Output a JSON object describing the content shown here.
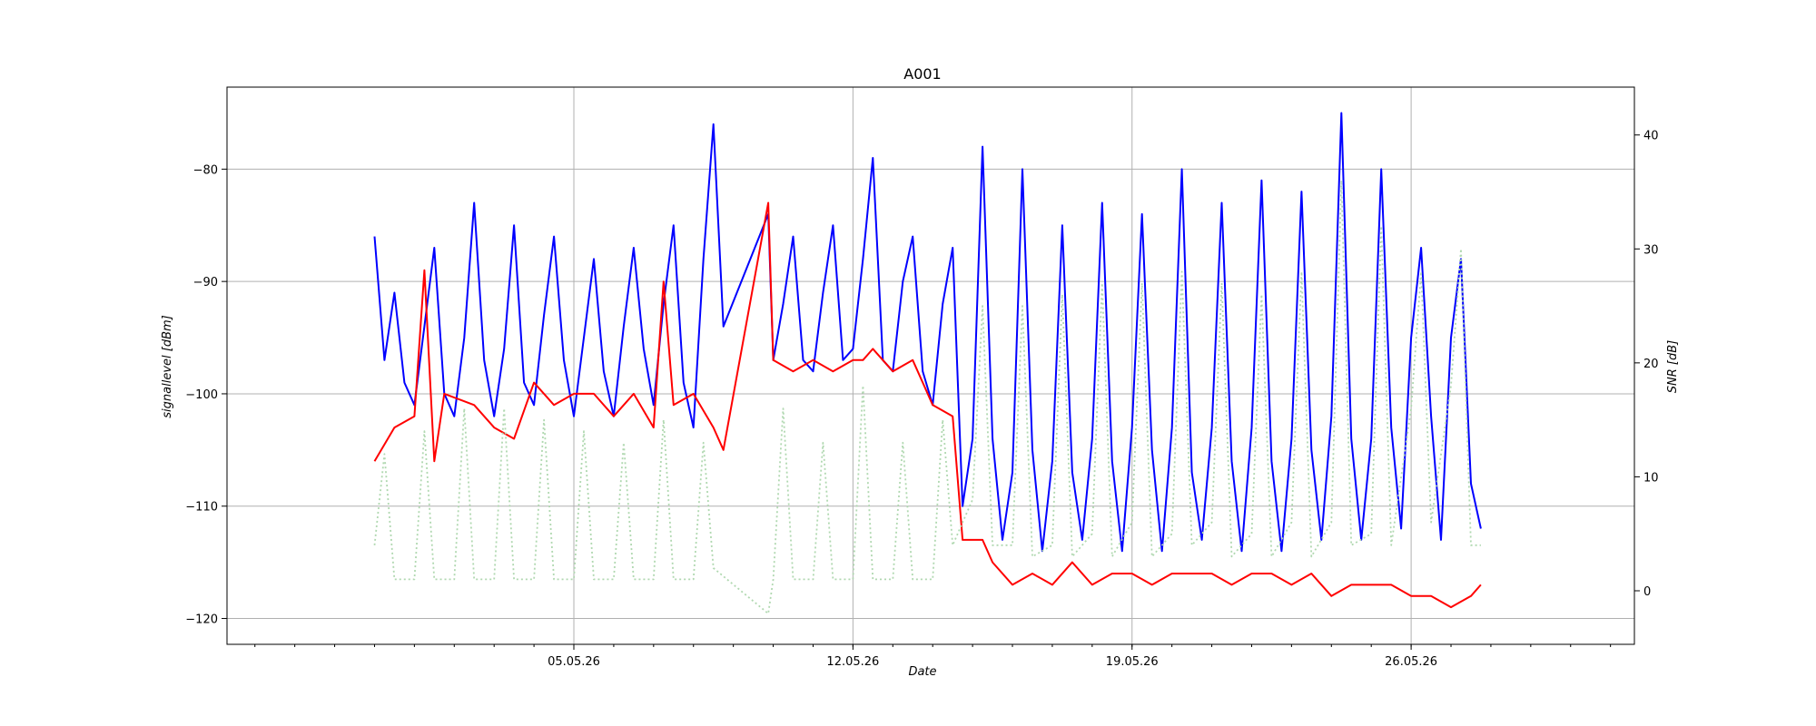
{
  "chart_data": {
    "type": "line",
    "title": "A001",
    "xlabel": "Date",
    "ylabel_left": "signallevel [dBm]",
    "ylabel_right": "SNR [dB]",
    "x_start": "2026-04-30",
    "x_end": "2026-05-27",
    "x_ticks": [
      "05.05.26",
      "12.05.26",
      "19.05.26",
      "26.05.26"
    ],
    "y_left_ticks": [
      -80,
      -90,
      -100,
      -110,
      -120
    ],
    "y_left_lim": [
      -122.3,
      -72.7
    ],
    "y_right_ticks": [
      40,
      30,
      20,
      10,
      0
    ],
    "y_right_lim": [
      -4.7,
      44.2
    ],
    "grid": true,
    "series": [
      {
        "axis": "left",
        "color": "#0000ff",
        "style": "solid",
        "data": [
          [
            "2026-04-30T00:00",
            -86
          ],
          [
            "2026-04-30T06:00",
            -97
          ],
          [
            "2026-04-30T12:00",
            -91
          ],
          [
            "2026-04-30T18:00",
            -99
          ],
          [
            "2026-05-01T00:00",
            -101
          ],
          [
            "2026-05-01T06:00",
            -94
          ],
          [
            "2026-05-01T12:00",
            -87
          ],
          [
            "2026-05-01T18:00",
            -100
          ],
          [
            "2026-05-02T00:00",
            -102
          ],
          [
            "2026-05-02T06:00",
            -95
          ],
          [
            "2026-05-02T12:00",
            -83
          ],
          [
            "2026-05-02T18:00",
            -97
          ],
          [
            "2026-05-03T00:00",
            -102
          ],
          [
            "2026-05-03T06:00",
            -96
          ],
          [
            "2026-05-03T12:00",
            -85
          ],
          [
            "2026-05-03T18:00",
            -99
          ],
          [
            "2026-05-04T00:00",
            -101
          ],
          [
            "2026-05-04T06:00",
            -93
          ],
          [
            "2026-05-04T12:00",
            -86
          ],
          [
            "2026-05-04T18:00",
            -97
          ],
          [
            "2026-05-05T00:00",
            -102
          ],
          [
            "2026-05-05T06:00",
            -95
          ],
          [
            "2026-05-05T12:00",
            -88
          ],
          [
            "2026-05-05T18:00",
            -98
          ],
          [
            "2026-05-06T00:00",
            -102
          ],
          [
            "2026-05-06T06:00",
            -94
          ],
          [
            "2026-05-06T12:00",
            -87
          ],
          [
            "2026-05-06T18:00",
            -96
          ],
          [
            "2026-05-07T00:00",
            -101
          ],
          [
            "2026-05-07T06:00",
            -92
          ],
          [
            "2026-05-07T12:00",
            -85
          ],
          [
            "2026-05-07T18:00",
            -99
          ],
          [
            "2026-05-08T00:00",
            -103
          ],
          [
            "2026-05-08T06:00",
            -88
          ],
          [
            "2026-05-08T12:00",
            -76
          ],
          [
            "2026-05-08T18:00",
            -94
          ],
          [
            "2026-05-09T21:00",
            -84
          ],
          [
            "2026-05-10T00:00",
            -97
          ],
          [
            "2026-05-10T06:00",
            -92
          ],
          [
            "2026-05-10T12:00",
            -86
          ],
          [
            "2026-05-10T18:00",
            -97
          ],
          [
            "2026-05-11T00:00",
            -98
          ],
          [
            "2026-05-11T06:00",
            -91
          ],
          [
            "2026-05-11T12:00",
            -85
          ],
          [
            "2026-05-11T18:00",
            -97
          ],
          [
            "2026-05-12T00:00",
            -96
          ],
          [
            "2026-05-12T06:00",
            -88
          ],
          [
            "2026-05-12T12:00",
            -79
          ],
          [
            "2026-05-12T18:00",
            -97
          ],
          [
            "2026-05-13T00:00",
            -98
          ],
          [
            "2026-05-13T06:00",
            -90
          ],
          [
            "2026-05-13T12:00",
            -86
          ],
          [
            "2026-05-13T18:00",
            -98
          ],
          [
            "2026-05-14T00:00",
            -101
          ],
          [
            "2026-05-14T06:00",
            -92
          ],
          [
            "2026-05-14T12:00",
            -87
          ],
          [
            "2026-05-14T18:00",
            -110
          ],
          [
            "2026-05-15T00:00",
            -104
          ],
          [
            "2026-05-15T06:00",
            -78
          ],
          [
            "2026-05-15T12:00",
            -104
          ],
          [
            "2026-05-15T18:00",
            -113
          ],
          [
            "2026-05-16T00:00",
            -107
          ],
          [
            "2026-05-16T06:00",
            -80
          ],
          [
            "2026-05-16T12:00",
            -105
          ],
          [
            "2026-05-16T18:00",
            -114
          ],
          [
            "2026-05-17T00:00",
            -106
          ],
          [
            "2026-05-17T06:00",
            -85
          ],
          [
            "2026-05-17T12:00",
            -107
          ],
          [
            "2026-05-17T18:00",
            -113
          ],
          [
            "2026-05-18T00:00",
            -104
          ],
          [
            "2026-05-18T06:00",
            -83
          ],
          [
            "2026-05-18T12:00",
            -106
          ],
          [
            "2026-05-18T18:00",
            -114
          ],
          [
            "2026-05-19T00:00",
            -103
          ],
          [
            "2026-05-19T06:00",
            -84
          ],
          [
            "2026-05-19T12:00",
            -105
          ],
          [
            "2026-05-19T18:00",
            -114
          ],
          [
            "2026-05-20T00:00",
            -103
          ],
          [
            "2026-05-20T06:00",
            -80
          ],
          [
            "2026-05-20T12:00",
            -107
          ],
          [
            "2026-05-20T18:00",
            -113
          ],
          [
            "2026-05-21T00:00",
            -103
          ],
          [
            "2026-05-21T06:00",
            -83
          ],
          [
            "2026-05-21T12:00",
            -106
          ],
          [
            "2026-05-21T18:00",
            -114
          ],
          [
            "2026-05-22T00:00",
            -103
          ],
          [
            "2026-05-22T06:00",
            -81
          ],
          [
            "2026-05-22T12:00",
            -106
          ],
          [
            "2026-05-22T18:00",
            -114
          ],
          [
            "2026-05-23T00:00",
            -104
          ],
          [
            "2026-05-23T06:00",
            -82
          ],
          [
            "2026-05-23T12:00",
            -105
          ],
          [
            "2026-05-23T18:00",
            -113
          ],
          [
            "2026-05-24T00:00",
            -102
          ],
          [
            "2026-05-24T06:00",
            -75
          ],
          [
            "2026-05-24T12:00",
            -104
          ],
          [
            "2026-05-24T18:00",
            -113
          ],
          [
            "2026-05-25T00:00",
            -104
          ],
          [
            "2026-05-25T06:00",
            -80
          ],
          [
            "2026-05-25T12:00",
            -103
          ],
          [
            "2026-05-25T18:00",
            -112
          ],
          [
            "2026-05-26T00:00",
            -95
          ],
          [
            "2026-05-26T06:00",
            -87
          ],
          [
            "2026-05-26T12:00",
            -102
          ],
          [
            "2026-05-26T18:00",
            -113
          ],
          [
            "2026-05-27T00:00",
            -95
          ],
          [
            "2026-05-27T06:00",
            -88
          ],
          [
            "2026-05-27T12:00",
            -108
          ],
          [
            "2026-05-27T18:00",
            -112
          ]
        ]
      },
      {
        "axis": "left",
        "color": "#ff0000",
        "style": "solid",
        "data": [
          [
            "2026-04-30T00:00",
            -106
          ],
          [
            "2026-04-30T12:00",
            -103
          ],
          [
            "2026-05-01T00:00",
            -102
          ],
          [
            "2026-05-01T06:00",
            -89
          ],
          [
            "2026-05-01T12:00",
            -106
          ],
          [
            "2026-05-01T18:00",
            -100
          ],
          [
            "2026-05-02T12:00",
            -101
          ],
          [
            "2026-05-03T00:00",
            -103
          ],
          [
            "2026-05-03T12:00",
            -104
          ],
          [
            "2026-05-04T00:00",
            -99
          ],
          [
            "2026-05-04T12:00",
            -101
          ],
          [
            "2026-05-05T00:00",
            -100
          ],
          [
            "2026-05-05T12:00",
            -100
          ],
          [
            "2026-05-06T00:00",
            -102
          ],
          [
            "2026-05-06T12:00",
            -100
          ],
          [
            "2026-05-07T00:00",
            -103
          ],
          [
            "2026-05-07T06:00",
            -90
          ],
          [
            "2026-05-07T12:00",
            -101
          ],
          [
            "2026-05-08T00:00",
            -100
          ],
          [
            "2026-05-08T12:00",
            -103
          ],
          [
            "2026-05-08T18:00",
            -105
          ],
          [
            "2026-05-09T21:00",
            -83
          ],
          [
            "2026-05-10T00:00",
            -97
          ],
          [
            "2026-05-10T12:00",
            -98
          ],
          [
            "2026-05-11T00:00",
            -97
          ],
          [
            "2026-05-11T12:00",
            -98
          ],
          [
            "2026-05-12T00:00",
            -97
          ],
          [
            "2026-05-12T06:00",
            -97
          ],
          [
            "2026-05-12T12:00",
            -96
          ],
          [
            "2026-05-13T00:00",
            -98
          ],
          [
            "2026-05-13T12:00",
            -97
          ],
          [
            "2026-05-14T00:00",
            -101
          ],
          [
            "2026-05-14T12:00",
            -102
          ],
          [
            "2026-05-14T18:00",
            -113
          ],
          [
            "2026-05-15T06:00",
            -113
          ],
          [
            "2026-05-15T12:00",
            -115
          ],
          [
            "2026-05-16T00:00",
            -117
          ],
          [
            "2026-05-16T12:00",
            -116
          ],
          [
            "2026-05-17T00:00",
            -117
          ],
          [
            "2026-05-17T12:00",
            -115
          ],
          [
            "2026-05-18T00:00",
            -117
          ],
          [
            "2026-05-18T12:00",
            -116
          ],
          [
            "2026-05-19T00:00",
            -116
          ],
          [
            "2026-05-19T12:00",
            -117
          ],
          [
            "2026-05-20T00:00",
            -116
          ],
          [
            "2026-05-20T12:00",
            -116
          ],
          [
            "2026-05-21T00:00",
            -116
          ],
          [
            "2026-05-21T12:00",
            -117
          ],
          [
            "2026-05-22T00:00",
            -116
          ],
          [
            "2026-05-22T12:00",
            -116
          ],
          [
            "2026-05-23T00:00",
            -117
          ],
          [
            "2026-05-23T12:00",
            -116
          ],
          [
            "2026-05-24T00:00",
            -118
          ],
          [
            "2026-05-24T12:00",
            -117
          ],
          [
            "2026-05-25T00:00",
            -117
          ],
          [
            "2026-05-25T12:00",
            -117
          ],
          [
            "2026-05-26T00:00",
            -118
          ],
          [
            "2026-05-26T12:00",
            -118
          ],
          [
            "2026-05-27T00:00",
            -119
          ],
          [
            "2026-05-27T12:00",
            -118
          ],
          [
            "2026-05-27T18:00",
            -117
          ]
        ]
      },
      {
        "axis": "right",
        "color": "#b0d8b0",
        "style": "dotted",
        "data": [
          [
            "2026-04-30T00:00",
            4
          ],
          [
            "2026-04-30T06:00",
            12
          ],
          [
            "2026-04-30T12:00",
            1
          ],
          [
            "2026-05-01T00:00",
            1
          ],
          [
            "2026-05-01T06:00",
            14
          ],
          [
            "2026-05-01T12:00",
            1
          ],
          [
            "2026-05-02T00:00",
            1
          ],
          [
            "2026-05-02T06:00",
            16
          ],
          [
            "2026-05-02T12:00",
            1
          ],
          [
            "2026-05-03T00:00",
            1
          ],
          [
            "2026-05-03T06:00",
            16
          ],
          [
            "2026-05-03T12:00",
            1
          ],
          [
            "2026-05-04T00:00",
            1
          ],
          [
            "2026-05-04T06:00",
            15
          ],
          [
            "2026-05-04T12:00",
            1
          ],
          [
            "2026-05-05T00:00",
            1
          ],
          [
            "2026-05-05T06:00",
            14
          ],
          [
            "2026-05-05T12:00",
            1
          ],
          [
            "2026-05-06T00:00",
            1
          ],
          [
            "2026-05-06T06:00",
            13
          ],
          [
            "2026-05-06T12:00",
            1
          ],
          [
            "2026-05-07T00:00",
            1
          ],
          [
            "2026-05-07T06:00",
            15
          ],
          [
            "2026-05-07T12:00",
            1
          ],
          [
            "2026-05-08T00:00",
            1
          ],
          [
            "2026-05-08T06:00",
            13
          ],
          [
            "2026-05-08T12:00",
            2
          ],
          [
            "2026-05-09T21:00",
            -2
          ],
          [
            "2026-05-10T00:00",
            1
          ],
          [
            "2026-05-10T06:00",
            16
          ],
          [
            "2026-05-10T12:00",
            1
          ],
          [
            "2026-05-11T00:00",
            1
          ],
          [
            "2026-05-11T06:00",
            13
          ],
          [
            "2026-05-11T12:00",
            1
          ],
          [
            "2026-05-12T00:00",
            1
          ],
          [
            "2026-05-12T06:00",
            18
          ],
          [
            "2026-05-12T12:00",
            1
          ],
          [
            "2026-05-13T00:00",
            1
          ],
          [
            "2026-05-13T06:00",
            13
          ],
          [
            "2026-05-13T12:00",
            1
          ],
          [
            "2026-05-14T00:00",
            1
          ],
          [
            "2026-05-14T06:00",
            15
          ],
          [
            "2026-05-14T12:00",
            4
          ],
          [
            "2026-05-15T00:00",
            8
          ],
          [
            "2026-05-15T06:00",
            25
          ],
          [
            "2026-05-15T12:00",
            4
          ],
          [
            "2026-05-16T00:00",
            4
          ],
          [
            "2026-05-16T06:00",
            25
          ],
          [
            "2026-05-16T12:00",
            3
          ],
          [
            "2026-05-17T00:00",
            4
          ],
          [
            "2026-05-17T06:00",
            26
          ],
          [
            "2026-05-17T12:00",
            3
          ],
          [
            "2026-05-18T00:00",
            5
          ],
          [
            "2026-05-18T06:00",
            27
          ],
          [
            "2026-05-18T12:00",
            3
          ],
          [
            "2026-05-19T00:00",
            6
          ],
          [
            "2026-05-19T06:00",
            27
          ],
          [
            "2026-05-19T12:00",
            3
          ],
          [
            "2026-05-20T00:00",
            5
          ],
          [
            "2026-05-20T06:00",
            28
          ],
          [
            "2026-05-20T12:00",
            4
          ],
          [
            "2026-05-21T00:00",
            6
          ],
          [
            "2026-05-21T06:00",
            27
          ],
          [
            "2026-05-21T12:00",
            3
          ],
          [
            "2026-05-22T00:00",
            5
          ],
          [
            "2026-05-22T06:00",
            26
          ],
          [
            "2026-05-22T12:00",
            3
          ],
          [
            "2026-05-23T00:00",
            6
          ],
          [
            "2026-05-23T06:00",
            28
          ],
          [
            "2026-05-23T12:00",
            3
          ],
          [
            "2026-05-24T00:00",
            6
          ],
          [
            "2026-05-24T06:00",
            36
          ],
          [
            "2026-05-24T12:00",
            4
          ],
          [
            "2026-05-25T00:00",
            5
          ],
          [
            "2026-05-25T06:00",
            32
          ],
          [
            "2026-05-25T12:00",
            4
          ],
          [
            "2026-05-26T00:00",
            16
          ],
          [
            "2026-05-26T06:00",
            28
          ],
          [
            "2026-05-26T12:00",
            6
          ],
          [
            "2026-05-27T00:00",
            18
          ],
          [
            "2026-05-27T06:00",
            30
          ],
          [
            "2026-05-27T12:00",
            4
          ],
          [
            "2026-05-27T18:00",
            4
          ]
        ]
      }
    ]
  }
}
